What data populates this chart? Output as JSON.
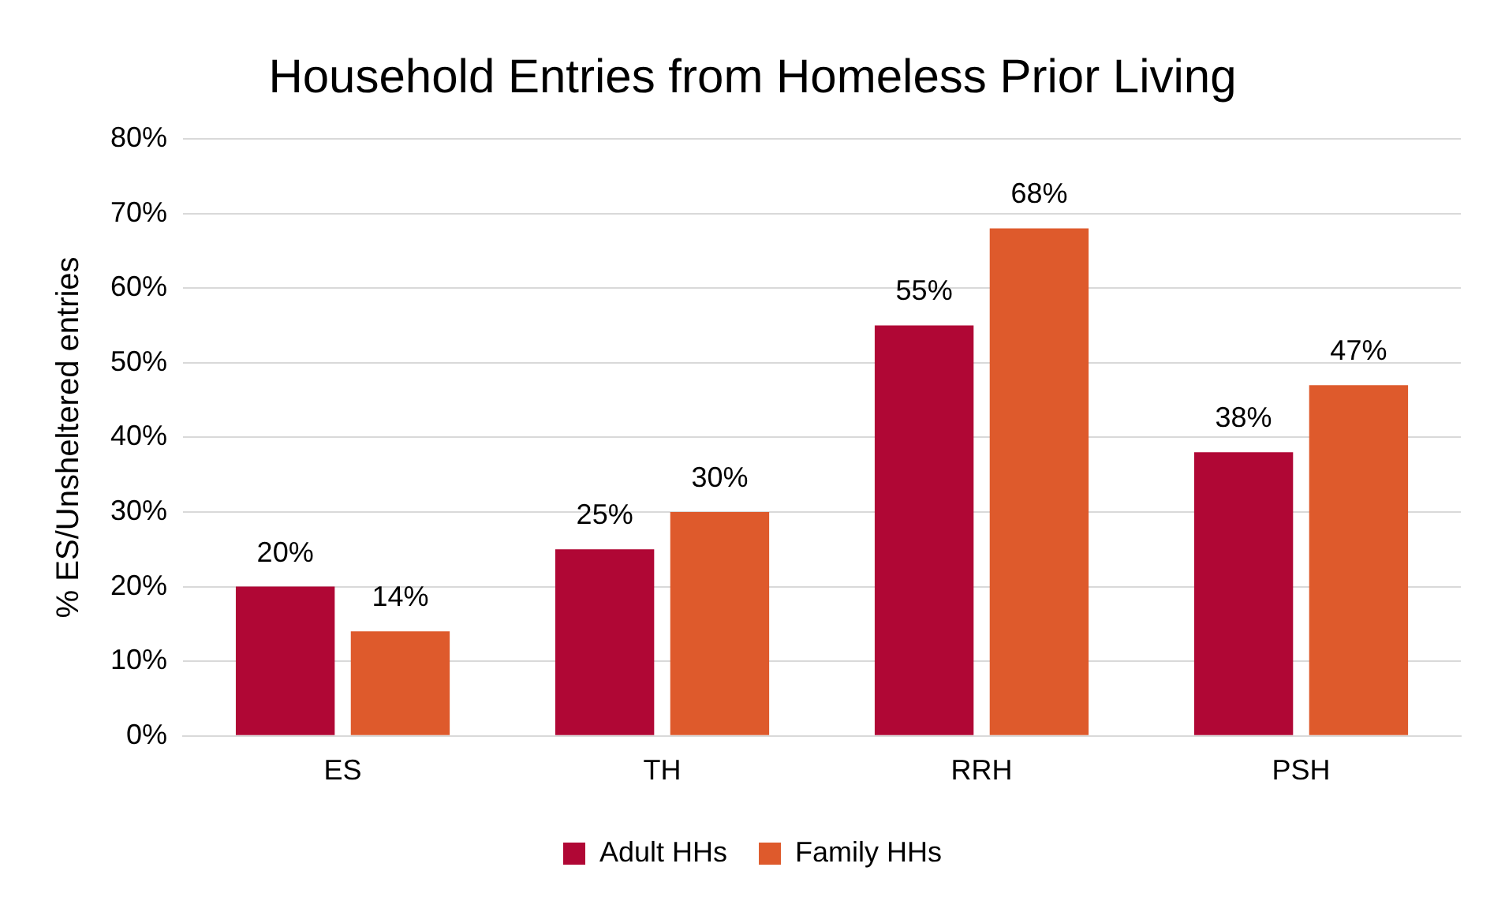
{
  "chart_data": {
    "type": "bar",
    "title": "Household Entries from Homeless Prior Living",
    "ylabel": "% ES/Unsheltered entries",
    "categories": [
      "ES",
      "TH",
      "RRH",
      "PSH"
    ],
    "series": [
      {
        "name": "Adult HHs",
        "color": "#b00735",
        "values": [
          20,
          25,
          55,
          38
        ],
        "value_labels": [
          "20%",
          "25%",
          "55%",
          "38%"
        ]
      },
      {
        "name": "Family HHs",
        "color": "#de5a2c",
        "values": [
          14,
          30,
          68,
          47
        ],
        "value_labels": [
          "14%",
          "30%",
          "68%",
          "47%"
        ]
      }
    ],
    "ylim": [
      0,
      80
    ],
    "yticks": [
      {
        "value": 0,
        "label": "0%"
      },
      {
        "value": 10,
        "label": "10%"
      },
      {
        "value": 20,
        "label": "20%"
      },
      {
        "value": 30,
        "label": "30%"
      },
      {
        "value": 40,
        "label": "40%"
      },
      {
        "value": 50,
        "label": "50%"
      },
      {
        "value": 60,
        "label": "60%"
      },
      {
        "value": 70,
        "label": "70%"
      },
      {
        "value": 80,
        "label": "80%"
      }
    ],
    "grid": "y",
    "legend": "bottom"
  }
}
